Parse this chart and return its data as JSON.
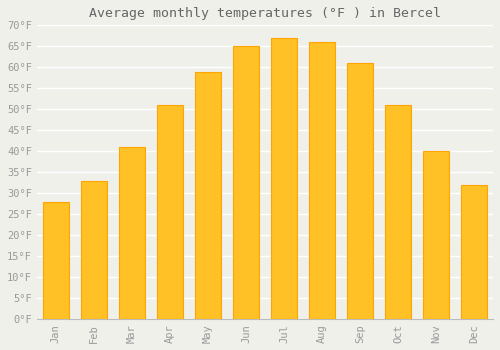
{
  "title": "Average monthly temperatures (°F ) in Bercel",
  "months": [
    "Jan",
    "Feb",
    "Mar",
    "Apr",
    "May",
    "Jun",
    "Jul",
    "Aug",
    "Sep",
    "Oct",
    "Nov",
    "Dec"
  ],
  "values": [
    28,
    33,
    41,
    51,
    59,
    65,
    67,
    66,
    61,
    51,
    40,
    32
  ],
  "bar_color_top": "#FFC125",
  "bar_color_bottom": "#FFB000",
  "bar_edge_color": "#FFA500",
  "background_color": "#F0F0EB",
  "plot_bg_color": "#F0F0EB",
  "grid_color": "#FFFFFF",
  "title_color": "#666666",
  "tick_color": "#999999",
  "ylim": [
    0,
    70
  ],
  "ytick_step": 5,
  "title_fontsize": 9.5,
  "tick_fontsize": 7.5,
  "bar_width": 0.7
}
